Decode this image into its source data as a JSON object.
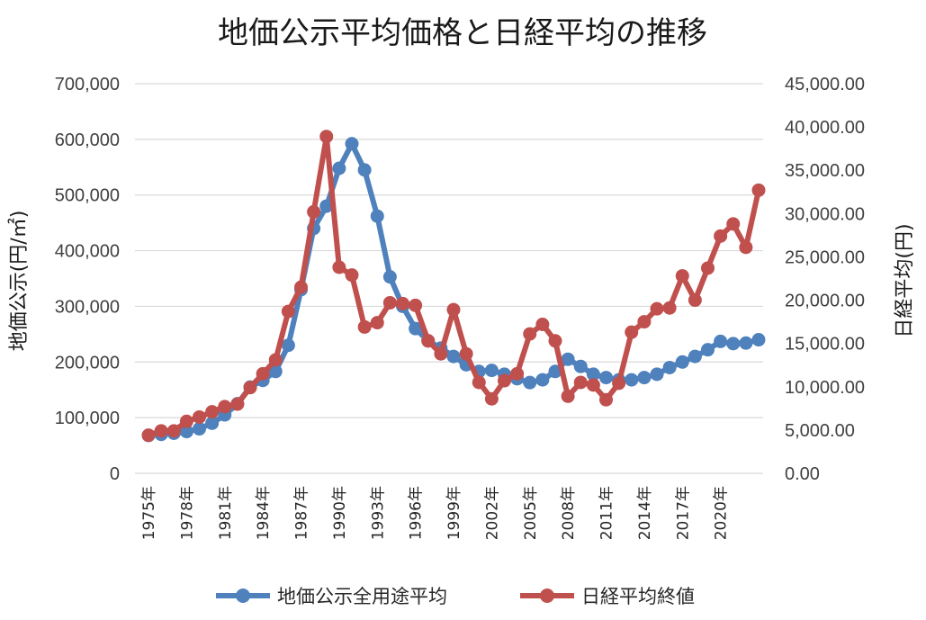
{
  "chart_data": {
    "type": "line",
    "title": "地価公示平均価格と日経平均の推移",
    "ylabel_left": "地価公示(円/㎡)",
    "ylabel_right": "日経平均(円)",
    "ylim_left": [
      0,
      700000
    ],
    "ylim_right": [
      0,
      45000
    ],
    "yticks_left": [
      "0",
      "100,000",
      "200,000",
      "300,000",
      "400,000",
      "500,000",
      "600,000",
      "700,000"
    ],
    "yticks_right": [
      "0.00",
      "5,000.00",
      "10,000.00",
      "15,000.00",
      "20,000.00",
      "25,000.00",
      "30,000.00",
      "35,000.00",
      "40,000.00",
      "45,000.00"
    ],
    "x_tick_labels": [
      "1975年",
      "1978年",
      "1981年",
      "1984年",
      "1987年",
      "1990年",
      "1993年",
      "1996年",
      "1999年",
      "2002年",
      "2005年",
      "2008年",
      "2011年",
      "2014年",
      "2017年",
      "2020年"
    ],
    "grid": true,
    "legend_position": "bottom",
    "x": [
      "1975年",
      "1976年",
      "1977年",
      "1978年",
      "1979年",
      "1980年",
      "1981年",
      "1982年",
      "1983年",
      "1984年",
      "1985年",
      "1986年",
      "1987年",
      "1988年",
      "1989年",
      "1990年",
      "1991年",
      "1992年",
      "1993年",
      "1994年",
      "1995年",
      "1996年",
      "1997年",
      "1998年",
      "1999年",
      "2000年",
      "2001年",
      "2002年",
      "2003年",
      "2004年",
      "2005年",
      "2006年",
      "2007年",
      "2008年",
      "2009年",
      "2010年",
      "2011年",
      "2012年",
      "2013年",
      "2014年",
      "2015年",
      "2016年",
      "2017年",
      "2018年",
      "2019年",
      "2020年",
      "2021年",
      "2022年",
      "2023年"
    ],
    "series": [
      {
        "name": "地価公示全用途平均",
        "axis": "left",
        "color": "#4f81bd",
        "values": [
          68000,
          70000,
          72000,
          75000,
          80000,
          90000,
          105000,
          125000,
          155000,
          167000,
          183000,
          230000,
          330000,
          440000,
          480000,
          548000,
          592000,
          545000,
          462000,
          353000,
          300000,
          260000,
          238000,
          225000,
          210000,
          195000,
          183000,
          185000,
          178000,
          170000,
          163000,
          168000,
          183000,
          205000,
          192000,
          178000,
          172000,
          168000,
          168000,
          172000,
          178000,
          190000,
          200000,
          210000,
          222000,
          237000,
          233000,
          234000,
          240000
        ]
      },
      {
        "name": "日経平均終値",
        "axis": "right",
        "color": "#c0504d",
        "values": [
          4400,
          4900,
          4900,
          6000,
          6500,
          7100,
          7700,
          8000,
          9900,
          11500,
          13100,
          18700,
          21500,
          30200,
          38900,
          23800,
          22900,
          16900,
          17400,
          19700,
          19600,
          19400,
          15300,
          13800,
          18900,
          13800,
          10500,
          8600,
          10700,
          11500,
          16100,
          17200,
          15300,
          8900,
          10500,
          10200,
          8500,
          10400,
          16300,
          17500,
          19000,
          19100,
          22800,
          20000,
          23700,
          27400,
          28800,
          26100,
          32700
        ]
      }
    ]
  }
}
